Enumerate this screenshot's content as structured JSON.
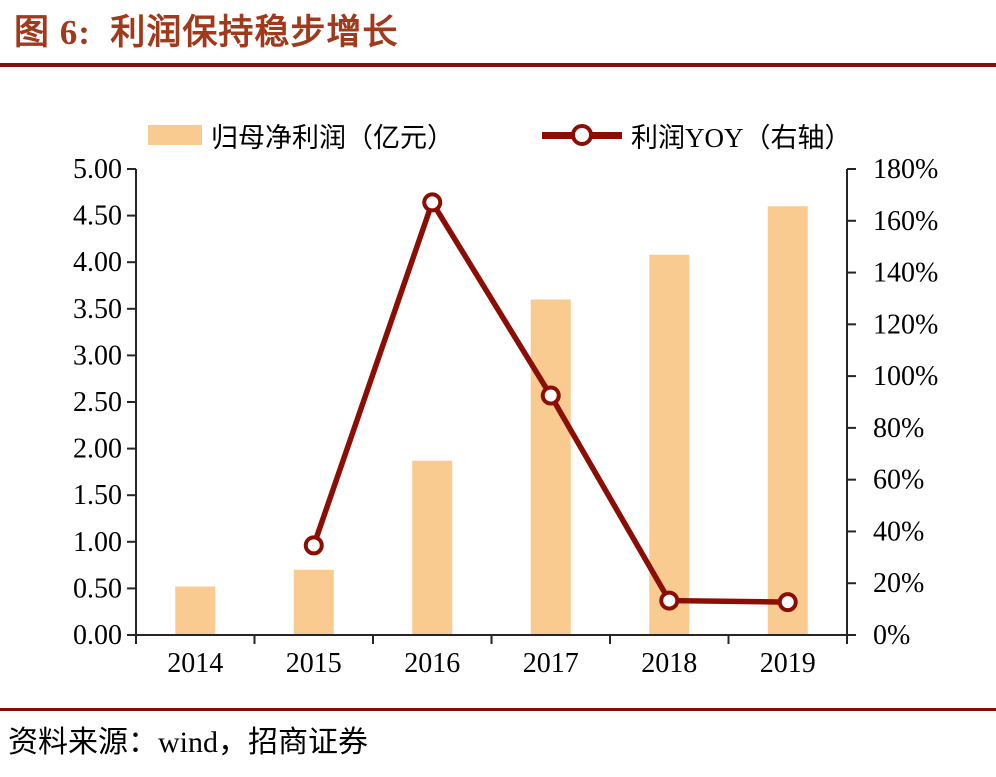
{
  "figure": {
    "title": "图 6:  利润保持稳步增长",
    "source": "资料来源：wind，招商证券"
  },
  "chart_data": {
    "type": "bar+line combo",
    "categories": [
      "2014",
      "2015",
      "2016",
      "2017",
      "2018",
      "2019"
    ],
    "series": [
      {
        "name": "归母净利润（亿元）",
        "type": "bar",
        "axis": "left",
        "values": [
          0.52,
          0.7,
          1.87,
          3.6,
          4.08,
          4.6
        ]
      },
      {
        "name": "利润YOY（右轴）",
        "type": "line",
        "axis": "right",
        "values": [
          null,
          34.6,
          167.1,
          92.5,
          13.3,
          12.7
        ]
      }
    ],
    "left_axis": {
      "min": 0,
      "max": 5,
      "step": 0.5,
      "tick_format": "0.00"
    },
    "right_axis": {
      "min": 0,
      "max": 180,
      "step": 20,
      "tick_format": "0%"
    },
    "legend_position": "top",
    "grid": false,
    "colors": {
      "bar": "#facb91",
      "line": "#8b0e04",
      "marker_fill": "#ffffff",
      "axis": "#262626",
      "text": "#000000",
      "title": "#a03a1c",
      "rule": "#7e130c"
    }
  }
}
